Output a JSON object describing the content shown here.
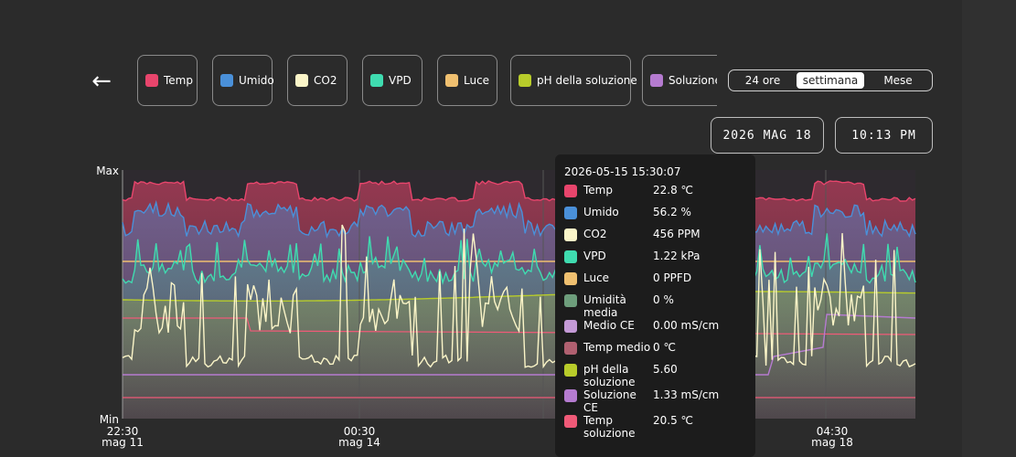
{
  "nav": {
    "back_icon": "arrow-left-icon",
    "back_glyph": "←"
  },
  "legend": [
    {
      "label": "Temp",
      "color": "#e8456c"
    },
    {
      "label": "Umido",
      "color": "#4a90d9"
    },
    {
      "label": "CO2",
      "color": "#fbf5c8"
    },
    {
      "label": "VPD",
      "color": "#3fdcb0"
    },
    {
      "label": "Luce",
      "color": "#f0c070"
    },
    {
      "label": "pH della soluzione",
      "color": "#b8cc2a"
    },
    {
      "label": "Soluzione CE",
      "color": "#b57bd0"
    }
  ],
  "range": {
    "options": [
      "24 ore",
      "settimana",
      "Mese"
    ],
    "selected": "settimana"
  },
  "date_button": "2026 MAG 18",
  "time_button": "10:13 PM",
  "chart_data": {
    "type": "area",
    "y_axis": {
      "max_label": "Max",
      "min_label": "Min"
    },
    "x_ticks": [
      {
        "line1": "22:30",
        "line2": "mag 11"
      },
      {
        "line1": "00:30",
        "line2": "mag 14"
      },
      {
        "line1": "04:30",
        "line2": "mag 18"
      }
    ],
    "series": [
      {
        "name": "Temp",
        "color": "#e8456c"
      },
      {
        "name": "Umido",
        "color": "#4a90d9"
      },
      {
        "name": "CO2",
        "color": "#fbf5c8"
      },
      {
        "name": "VPD",
        "color": "#3fdcb0"
      },
      {
        "name": "Luce",
        "color": "#f0c070"
      },
      {
        "name": "pH della soluzione",
        "color": "#b8cc2a"
      },
      {
        "name": "Soluzione CE",
        "color": "#b57bd0"
      },
      {
        "name": "Temp soluzione",
        "color": "#f05a78"
      }
    ]
  },
  "tooltip": {
    "timestamp": "2026-05-15 15:30:07",
    "rows": [
      {
        "name": "Temp",
        "value": "22.8 ℃",
        "color": "#e8456c"
      },
      {
        "name": "Umido",
        "value": "56.2 %",
        "color": "#4a90d9"
      },
      {
        "name": "CO2",
        "value": "456 PPM",
        "color": "#fbf5c8"
      },
      {
        "name": "VPD",
        "value": "1.22 kPa",
        "color": "#3fdcb0"
      },
      {
        "name": "Luce",
        "value": "0 PPFD",
        "color": "#f0c070"
      },
      {
        "name": "Umidità media",
        "value": "0 %",
        "color": "#6e9e7c"
      },
      {
        "name": "Medio CE",
        "value": "0.00 mS/cm",
        "color": "#c49ad6"
      },
      {
        "name": "Temp medio",
        "value": "0 ℃",
        "color": "#b06070"
      },
      {
        "name": "pH della soluzione",
        "value": "5.60",
        "color": "#b8cc2a"
      },
      {
        "name": "Soluzione CE",
        "value": "1.33 mS/cm",
        "color": "#b57bd0"
      },
      {
        "name": "Temp soluzione",
        "value": "20.5 ℃",
        "color": "#f05a78"
      }
    ]
  }
}
